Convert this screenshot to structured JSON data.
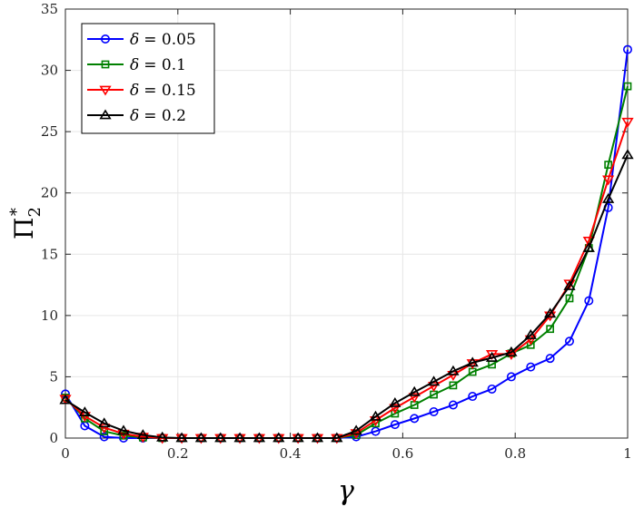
{
  "chart_data": {
    "type": "line",
    "xlabel": "γ",
    "ylabel_main": "Π",
    "ylabel_sup": "*",
    "ylabel_sub": "2",
    "xlim": [
      0,
      1
    ],
    "ylim": [
      0,
      35
    ],
    "xticks": [
      0,
      0.2,
      0.4,
      0.6,
      0.8,
      1
    ],
    "xtick_labels": [
      "0",
      "0.2",
      "0.4",
      "0.6",
      "0.8",
      "1"
    ],
    "yticks": [
      0,
      5,
      10,
      15,
      20,
      25,
      30,
      35
    ],
    "ytick_labels": [
      "0",
      "5",
      "10",
      "15",
      "20",
      "25",
      "30",
      "35"
    ],
    "grid": true,
    "legend_position": "top-left",
    "x": [
      0,
      0.0345,
      0.069,
      0.1034,
      0.1379,
      0.1724,
      0.2069,
      0.2414,
      0.2759,
      0.3103,
      0.3448,
      0.3793,
      0.4138,
      0.4483,
      0.4828,
      0.5172,
      0.5517,
      0.5862,
      0.6207,
      0.6552,
      0.6897,
      0.7241,
      0.7586,
      0.7931,
      0.8276,
      0.8621,
      0.8966,
      0.931,
      0.9655,
      1
    ],
    "series": [
      {
        "name": "δ = 0.05",
        "legend_symbol": "δ",
        "legend_value": "= 0.05",
        "color": "#0000ff",
        "marker": "circle",
        "values": [
          3.6,
          1.0,
          0.1,
          0.0,
          0.0,
          0.0,
          0.0,
          0.0,
          0.0,
          0.0,
          0.0,
          0.0,
          0.0,
          0.0,
          0.0,
          0.1,
          0.55,
          1.1,
          1.6,
          2.15,
          2.7,
          3.4,
          4.0,
          5.0,
          5.8,
          6.5,
          7.9,
          11.2,
          18.8,
          31.7
        ]
      },
      {
        "name": "δ = 0.1",
        "legend_symbol": "δ",
        "legend_value": "= 0.1",
        "color": "#008000",
        "marker": "square",
        "values": [
          3.3,
          1.6,
          0.55,
          0.2,
          0.05,
          0.0,
          0.0,
          0.0,
          0.0,
          0.0,
          0.0,
          0.0,
          0.0,
          0.0,
          0.0,
          0.25,
          1.2,
          2.0,
          2.7,
          3.55,
          4.3,
          5.4,
          6.0,
          6.9,
          7.6,
          8.9,
          11.4,
          15.5,
          22.3,
          28.7
        ]
      },
      {
        "name": "δ = 0.15",
        "legend_symbol": "δ",
        "legend_value": "= 0.15",
        "color": "#ff0000",
        "marker": "triangle-down",
        "values": [
          3.2,
          1.8,
          0.85,
          0.35,
          0.1,
          0.0,
          0.0,
          0.0,
          0.0,
          0.0,
          0.0,
          0.0,
          0.0,
          0.0,
          0.0,
          0.4,
          1.45,
          2.45,
          3.35,
          4.25,
          5.15,
          6.1,
          6.85,
          6.85,
          8.05,
          10.0,
          12.6,
          16.1,
          21.1,
          25.8
        ]
      },
      {
        "name": "δ = 0.2",
        "legend_symbol": "δ",
        "legend_value": "= 0.2",
        "color": "#000000",
        "marker": "triangle-up",
        "values": [
          3.1,
          2.1,
          1.2,
          0.6,
          0.25,
          0.05,
          0.0,
          0.0,
          0.0,
          0.0,
          0.0,
          0.0,
          0.0,
          0.0,
          0.0,
          0.6,
          1.75,
          2.85,
          3.75,
          4.6,
          5.45,
          6.15,
          6.55,
          7.0,
          8.4,
          10.15,
          12.4,
          15.5,
          19.5,
          23.1
        ]
      }
    ]
  }
}
